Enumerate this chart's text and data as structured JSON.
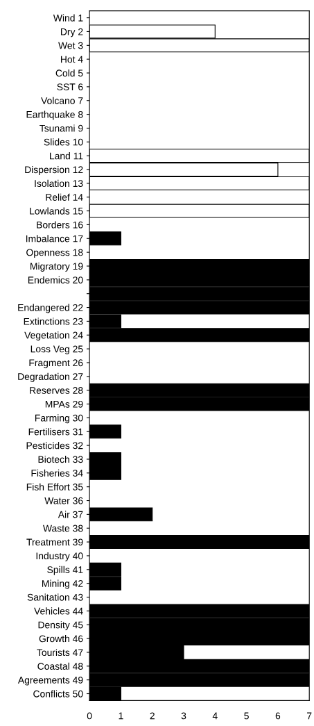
{
  "chart_data": {
    "type": "bar",
    "orientation": "horizontal",
    "categories": [
      "Wind 1",
      "Dry 2",
      "Wet 3",
      "Hot 4",
      "Cold 5",
      "SST 6",
      "Volcano 7",
      "Earthquake 8",
      "Tsunami 9",
      "Slides 10",
      "Land 11",
      "Dispersion 12",
      "Isolation 13",
      "Relief 14",
      "Lowlands 15",
      "Borders 16",
      "Imbalance 17",
      "Openness 18",
      "Migratory 19",
      "Endemics 20",
      null,
      "Endangered 22",
      "Extinctions 23",
      "Vegetation 24",
      "Loss Veg 25",
      "Fragment 26",
      "Degradation 27",
      "Reserves 28",
      "MPAs 29",
      "Farming 30",
      "Fertilisers 31",
      "Pesticides 32",
      "Biotech 33",
      "Fisheries 34",
      "Fish Effort 35",
      "Water 36",
      "Air 37",
      "Waste 38",
      "Treatment 39",
      "Industry 40",
      "Spills 41",
      "Mining 42",
      "Sanitation 43",
      "Vehicles 44",
      "Density 45",
      "Growth 46",
      "Tourists 47",
      "Coastal 48",
      "Agreements 49",
      "Conflicts 50"
    ],
    "values": [
      0,
      4,
      7,
      0,
      0,
      0,
      0,
      0,
      0,
      0,
      7,
      6,
      7,
      0,
      7,
      0,
      1,
      0,
      7,
      7,
      7,
      7,
      1,
      7,
      0,
      0,
      0,
      7,
      7,
      0,
      1,
      0,
      1,
      1,
      0,
      0,
      2,
      0,
      7,
      0,
      1,
      1,
      0,
      7,
      7,
      7,
      3,
      7,
      7,
      1
    ],
    "colors": [
      "#000000",
      "#ffffff",
      "#ffffff",
      "#000000",
      "#000000",
      "#000000",
      "#000000",
      "#000000",
      "#000000",
      "#000000",
      "#ffffff",
      "#ffffff",
      "#ffffff",
      "#000000",
      "#ffffff",
      "#000000",
      "#000000",
      "#000000",
      "#000000",
      "#000000",
      "#000000",
      "#000000",
      "#000000",
      "#000000",
      "#000000",
      "#000000",
      "#000000",
      "#000000",
      "#000000",
      "#000000",
      "#000000",
      "#000000",
      "#000000",
      "#000000",
      "#000000",
      "#000000",
      "#000000",
      "#000000",
      "#000000",
      "#000000",
      "#000000",
      "#000000",
      "#000000",
      "#000000",
      "#000000",
      "#000000",
      "#000000",
      "#000000",
      "#000000",
      "#000000"
    ],
    "xlim": [
      0,
      7
    ],
    "xticks": [
      0,
      1,
      2,
      3,
      4,
      5,
      6,
      7
    ],
    "grid": false
  }
}
